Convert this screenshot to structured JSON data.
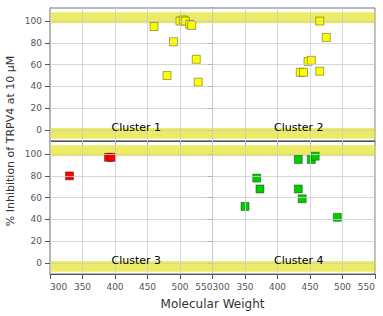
{
  "xlabel": "Molecular Weight",
  "ylabel": "% Inhibition of TRPV4 at 10 μM",
  "chart_data": [
    {
      "type": "scatter",
      "title": "Cluster 1",
      "x": [
        460,
        480,
        490,
        500,
        505,
        508,
        515,
        518,
        525,
        528
      ],
      "values": [
        95,
        50,
        81,
        100,
        101,
        100,
        97,
        96,
        65,
        44
      ],
      "color": "#FFFF00",
      "marker": "square",
      "xlim": [
        300,
        550
      ],
      "xticks": [
        300,
        350,
        400,
        450,
        500,
        550
      ],
      "ylim": [
        -10,
        112
      ],
      "yticks": [
        0,
        20,
        40,
        60,
        80,
        100
      ],
      "grid": true,
      "tick_labels": "y",
      "bands": [
        [
          98,
          108
        ],
        [
          -8,
          2
        ]
      ],
      "band_color": "#DDDD00"
    },
    {
      "type": "scatter",
      "title": "Cluster 2",
      "x": [
        465,
        475,
        435,
        440,
        447,
        452,
        465
      ],
      "values": [
        100,
        85,
        53,
        53,
        63,
        64,
        54
      ],
      "color": "#FFFF00",
      "marker": "square",
      "xlim": [
        300,
        550
      ],
      "xticks": [
        300,
        350,
        400,
        450,
        500,
        550
      ],
      "ylim": [
        -10,
        112
      ],
      "yticks": [
        0,
        20,
        40,
        60,
        80,
        100
      ],
      "grid": true,
      "tick_labels": false,
      "bands": [
        [
          98,
          108
        ],
        [
          -8,
          2
        ]
      ],
      "band_color": "#DDDD00"
    },
    {
      "type": "scatter",
      "title": "Cluster 3",
      "x": [
        330,
        390,
        395
      ],
      "values": [
        80,
        97,
        97
      ],
      "color": "#FF0000",
      "marker": "square",
      "xlim": [
        300,
        550
      ],
      "xticks": [
        300,
        350,
        400,
        450,
        500,
        550
      ],
      "ylim": [
        -10,
        112
      ],
      "yticks": [
        0,
        20,
        40,
        60,
        80,
        100
      ],
      "grid": true,
      "tick_labels": true,
      "bands": [
        [
          98,
          108
        ],
        [
          -8,
          2
        ]
      ],
      "band_color": "#DDDD00"
    },
    {
      "type": "scatter",
      "title": "Cluster 4",
      "x": [
        350,
        368,
        373,
        432,
        438,
        432,
        452,
        458,
        492
      ],
      "values": [
        52,
        78,
        68,
        68,
        59,
        95,
        95,
        98,
        42
      ],
      "color": "#00CC00",
      "marker": "square",
      "xlim": [
        300,
        550
      ],
      "xticks": [
        300,
        350,
        400,
        450,
        500,
        550
      ],
      "ylim": [
        -10,
        112
      ],
      "yticks": [
        0,
        20,
        40,
        60,
        80,
        100
      ],
      "grid": true,
      "tick_labels": "x",
      "bands": [
        [
          98,
          108
        ],
        [
          -8,
          2
        ]
      ],
      "band_color": "#DDDD00"
    }
  ]
}
